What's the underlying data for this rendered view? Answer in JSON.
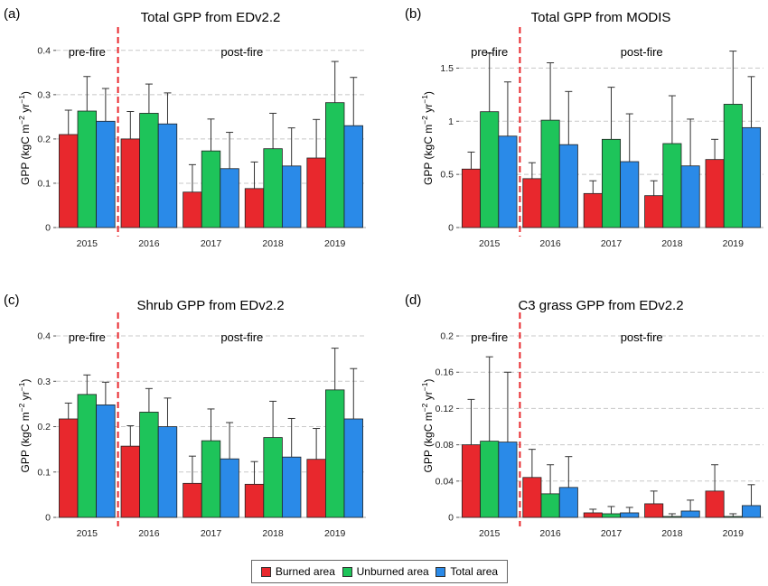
{
  "legend": [
    {
      "label": "Burned area",
      "color": "#e8282d"
    },
    {
      "label": "Unburned area",
      "color": "#1ec45a"
    },
    {
      "label": "Total area",
      "color": "#2a8ae8"
    }
  ],
  "chart_data": [
    {
      "panel": "(a)",
      "type": "bar",
      "title": "Total GPP from EDv2.2",
      "ylabel_base": "GPP (kgC m",
      "categories": [
        "2015",
        "2016",
        "2017",
        "2018",
        "2019"
      ],
      "ylim": [
        0,
        0.42
      ],
      "yticks": [
        0,
        0.1,
        0.2,
        0.3,
        0.4
      ],
      "ytick_labels": [
        "0",
        "0.1",
        "0.2",
        "0.3",
        "0.4"
      ],
      "annotations": {
        "pre": "pre-fire",
        "post": "post-fire"
      },
      "grid": "horizontal dashed",
      "series": [
        {
          "name": "Burned area",
          "values": [
            0.21,
            0.2,
            0.08,
            0.088,
            0.157
          ],
          "errors": [
            0.055,
            0.062,
            0.062,
            0.06,
            0.087
          ]
        },
        {
          "name": "Unburned area",
          "values": [
            0.263,
            0.258,
            0.173,
            0.178,
            0.282
          ],
          "errors": [
            0.078,
            0.066,
            0.072,
            0.08,
            0.093
          ]
        },
        {
          "name": "Total area",
          "values": [
            0.24,
            0.234,
            0.133,
            0.139,
            0.23
          ],
          "errors": [
            0.074,
            0.07,
            0.082,
            0.086,
            0.109
          ]
        }
      ]
    },
    {
      "panel": "(b)",
      "type": "bar",
      "title": "Total GPP from MODIS",
      "ylabel_base": "GPP (kgC m",
      "categories": [
        "2015",
        "2016",
        "2017",
        "2018",
        "2019"
      ],
      "ylim": [
        0,
        1.75
      ],
      "yticks": [
        0,
        0.5,
        1.0,
        1.5
      ],
      "ytick_labels": [
        "0",
        "0.5",
        "1",
        "1.5"
      ],
      "annotations": {
        "pre": "pre-fire",
        "post": "post-fire"
      },
      "grid": "horizontal dashed",
      "series": [
        {
          "name": "Burned area",
          "values": [
            0.55,
            0.46,
            0.32,
            0.3,
            0.64
          ],
          "errors": [
            0.16,
            0.15,
            0.12,
            0.14,
            0.19
          ]
        },
        {
          "name": "Unburned area",
          "values": [
            1.09,
            1.01,
            0.83,
            0.79,
            1.16
          ],
          "errors": [
            0.55,
            0.54,
            0.49,
            0.45,
            0.5
          ]
        },
        {
          "name": "Total area",
          "values": [
            0.86,
            0.78,
            0.62,
            0.58,
            0.94
          ],
          "errors": [
            0.51,
            0.5,
            0.45,
            0.44,
            0.48
          ]
        }
      ]
    },
    {
      "panel": "(c)",
      "type": "bar",
      "title": "Shrub GPP from EDv2.2",
      "ylabel_base": "GPP (kgC m",
      "categories": [
        "2015",
        "2016",
        "2017",
        "2018",
        "2019"
      ],
      "ylim": [
        0,
        0.42
      ],
      "yticks": [
        0,
        0.1,
        0.2,
        0.3,
        0.4
      ],
      "ytick_labels": [
        "0",
        "0.1",
        "0.2",
        "0.3",
        "0.4"
      ],
      "annotations": {
        "pre": "pre-fire",
        "post": "post-fire"
      },
      "grid": "horizontal dashed",
      "series": [
        {
          "name": "Burned area",
          "values": [
            0.217,
            0.157,
            0.075,
            0.073,
            0.128
          ],
          "errors": [
            0.035,
            0.045,
            0.06,
            0.05,
            0.068
          ]
        },
        {
          "name": "Unburned area",
          "values": [
            0.271,
            0.232,
            0.169,
            0.176,
            0.281
          ],
          "errors": [
            0.043,
            0.052,
            0.07,
            0.08,
            0.092
          ]
        },
        {
          "name": "Total area",
          "values": [
            0.248,
            0.2,
            0.129,
            0.133,
            0.217
          ],
          "errors": [
            0.05,
            0.063,
            0.08,
            0.085,
            0.111
          ]
        }
      ]
    },
    {
      "panel": "(d)",
      "type": "bar",
      "title": "C3 grass GPP from EDv2.2",
      "ylabel_base": "GPP (kgC m",
      "categories": [
        "2015",
        "2016",
        "2017",
        "2018",
        "2019"
      ],
      "ylim": [
        0,
        0.21
      ],
      "yticks": [
        0,
        0.04,
        0.08,
        0.12,
        0.16,
        0.2
      ],
      "ytick_labels": [
        "0",
        "0.04",
        "0.08",
        "0.12",
        "0.16",
        "0.2"
      ],
      "annotations": {
        "pre": "pre-fire",
        "post": "post-fire"
      },
      "grid": "horizontal dashed",
      "series": [
        {
          "name": "Burned area",
          "values": [
            0.08,
            0.044,
            0.005,
            0.015,
            0.029
          ],
          "errors": [
            0.05,
            0.031,
            0.004,
            0.014,
            0.029
          ]
        },
        {
          "name": "Unburned area",
          "values": [
            0.084,
            0.026,
            0.004,
            0.001,
            0.001
          ],
          "errors": [
            0.093,
            0.032,
            0.008,
            0.003,
            0.003
          ]
        },
        {
          "name": "Total area",
          "values": [
            0.083,
            0.033,
            0.005,
            0.007,
            0.013
          ],
          "errors": [
            0.077,
            0.034,
            0.006,
            0.012,
            0.023
          ]
        }
      ]
    }
  ]
}
